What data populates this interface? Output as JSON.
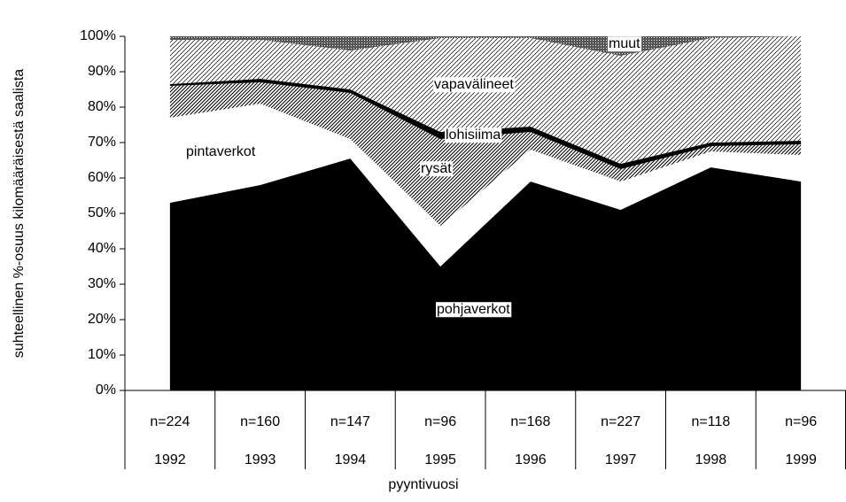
{
  "chart_data": {
    "type": "stacked_area",
    "y_axis_label": "suhteellinen %-osuus kilomääräisestä saalista",
    "x_axis_label": "pyyntivuosi",
    "categories": [
      "1992",
      "1993",
      "1994",
      "1995",
      "1996",
      "1997",
      "1998",
      "1999"
    ],
    "sample_sizes": [
      "n=224",
      "n=160",
      "n=147",
      "n=96",
      "n=168",
      "n=227",
      "n=118",
      "n=96"
    ],
    "series": [
      {
        "name": "pohjaverkot",
        "color": "#000000",
        "values": [
          53,
          58,
          65.5,
          35,
          59,
          51,
          63,
          59
        ]
      },
      {
        "name": "pintaverkot",
        "color": "#ffffff",
        "values": [
          24,
          23,
          5.5,
          11.5,
          9,
          8,
          4.5,
          7.5
        ]
      },
      {
        "name": "rysät",
        "color": "#000000",
        "pattern": "dense-hatch",
        "values": [
          9,
          6,
          13,
          24.5,
          5,
          3.5,
          1.5,
          3
        ]
      },
      {
        "name": "lohisiima",
        "color": "#000000",
        "values": [
          0.5,
          1,
          1,
          2,
          1.5,
          1.5,
          1,
          1
        ]
      },
      {
        "name": "vapavälineet",
        "color": "#000000",
        "pattern": "light-hatch",
        "values": [
          12.5,
          11,
          11,
          26.5,
          25,
          30.5,
          29.5,
          29.5
        ]
      },
      {
        "name": "muut",
        "color": "#000000",
        "pattern": "dark-dots",
        "values": [
          1,
          1,
          4,
          0.5,
          0.5,
          5.5,
          0.5,
          0
        ]
      }
    ],
    "ylim": [
      0,
      100
    ],
    "yticks": [
      {
        "value": 0,
        "label": "0%"
      },
      {
        "value": 10,
        "label": "10%"
      },
      {
        "value": 20,
        "label": "20%"
      },
      {
        "value": 30,
        "label": "30%"
      },
      {
        "value": 40,
        "label": "40%"
      },
      {
        "value": 50,
        "label": "50%"
      },
      {
        "value": 60,
        "label": "60%"
      },
      {
        "value": 70,
        "label": "70%"
      },
      {
        "value": 80,
        "label": "80%"
      },
      {
        "value": 90,
        "label": "90%"
      },
      {
        "value": 100,
        "label": "100%"
      }
    ],
    "grid": false
  }
}
